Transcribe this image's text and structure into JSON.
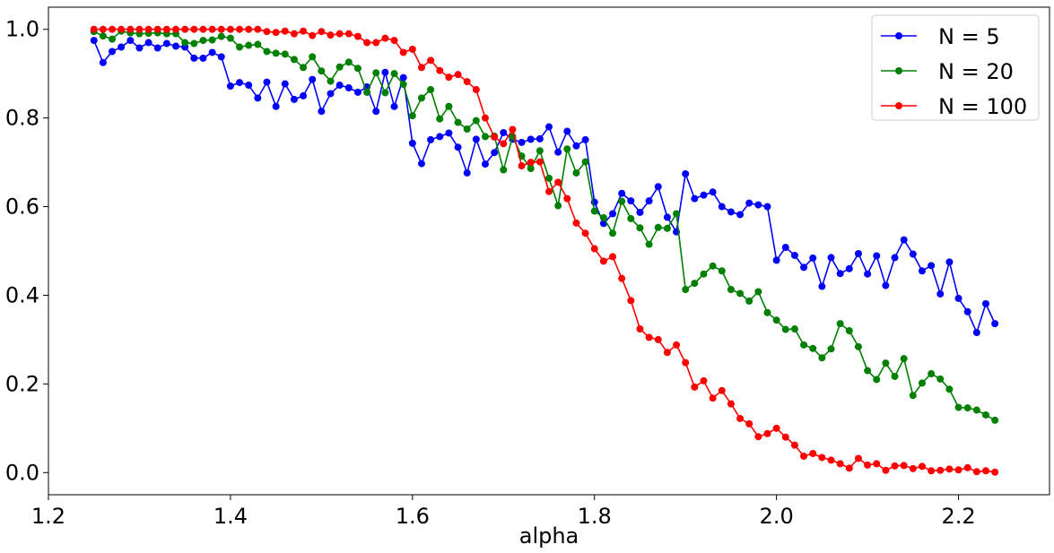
{
  "chart_data": {
    "type": "line",
    "title": "",
    "xlabel": "alpha",
    "ylabel": "",
    "xlim": [
      1.2,
      2.3
    ],
    "ylim": [
      -0.05,
      1.05
    ],
    "xticks": [
      "1.2",
      "1.4",
      "1.6",
      "1.8",
      "2.0",
      "2.2"
    ],
    "yticks": [
      "0.0",
      "0.2",
      "0.4",
      "0.6",
      "0.8",
      "1.0"
    ],
    "grid": false,
    "legend_position": "top-right",
    "x_start": 1.25,
    "x_step": 0.01,
    "series": [
      {
        "name": "N = 5",
        "color": "#0000ff",
        "values": [
          0.975,
          0.925,
          0.95,
          0.96,
          0.975,
          0.958,
          0.97,
          0.958,
          0.968,
          0.962,
          0.96,
          0.935,
          0.935,
          0.948,
          0.938,
          0.872,
          0.88,
          0.874,
          0.845,
          0.881,
          0.826,
          0.877,
          0.842,
          0.85,
          0.887,
          0.815,
          0.855,
          0.874,
          0.868,
          0.858,
          0.87,
          0.815,
          0.903,
          0.826,
          0.891,
          0.743,
          0.697,
          0.751,
          0.758,
          0.766,
          0.734,
          0.676,
          0.752,
          0.696,
          0.722,
          0.767,
          0.752,
          0.745,
          0.752,
          0.753,
          0.78,
          0.723,
          0.77,
          0.737,
          0.751,
          0.61,
          0.562,
          0.584,
          0.63,
          0.613,
          0.587,
          0.613,
          0.645,
          0.576,
          0.543,
          0.674,
          0.618,
          0.626,
          0.633,
          0.6,
          0.588,
          0.582,
          0.608,
          0.604,
          0.6,
          0.479,
          0.508,
          0.49,
          0.463,
          0.484,
          0.42,
          0.485,
          0.449,
          0.46,
          0.494,
          0.448,
          0.489,
          0.422,
          0.485,
          0.525,
          0.493,
          0.455,
          0.467,
          0.403,
          0.475,
          0.393,
          0.363,
          0.316,
          0.381,
          0.336
        ]
      },
      {
        "name": "N = 20",
        "color": "#008000",
        "values": [
          0.995,
          0.985,
          0.978,
          0.996,
          0.992,
          0.99,
          0.991,
          0.992,
          0.99,
          0.99,
          0.97,
          0.968,
          0.975,
          0.976,
          0.984,
          0.98,
          0.96,
          0.964,
          0.966,
          0.95,
          0.946,
          0.944,
          0.932,
          0.914,
          0.938,
          0.906,
          0.883,
          0.915,
          0.926,
          0.912,
          0.858,
          0.902,
          0.857,
          0.9,
          0.876,
          0.805,
          0.845,
          0.864,
          0.798,
          0.826,
          0.79,
          0.775,
          0.794,
          0.758,
          0.759,
          0.683,
          0.758,
          0.714,
          0.686,
          0.726,
          0.664,
          0.602,
          0.73,
          0.676,
          0.701,
          0.59,
          0.575,
          0.54,
          0.612,
          0.573,
          0.552,
          0.515,
          0.553,
          0.551,
          0.584,
          0.413,
          0.427,
          0.448,
          0.466,
          0.455,
          0.413,
          0.404,
          0.387,
          0.408,
          0.361,
          0.344,
          0.323,
          0.324,
          0.288,
          0.28,
          0.259,
          0.279,
          0.336,
          0.32,
          0.284,
          0.23,
          0.21,
          0.247,
          0.217,
          0.257,
          0.174,
          0.202,
          0.223,
          0.211,
          0.188,
          0.147,
          0.146,
          0.141,
          0.13,
          0.118
        ]
      },
      {
        "name": "N = 100",
        "color": "#ff0000",
        "values": [
          1.0,
          1.0,
          1.0,
          1.0,
          1.0,
          1.0,
          1.0,
          1.0,
          1.0,
          1.0,
          1.0,
          1.0,
          1.0,
          1.0,
          1.0,
          1.0,
          1.0,
          1.0,
          1.0,
          0.995,
          0.993,
          0.996,
          0.99,
          0.996,
          0.986,
          0.995,
          0.987,
          0.99,
          0.99,
          0.984,
          0.97,
          0.97,
          0.98,
          0.975,
          0.948,
          0.955,
          0.914,
          0.93,
          0.907,
          0.892,
          0.898,
          0.882,
          0.864,
          0.8,
          0.757,
          0.742,
          0.774,
          0.692,
          0.7,
          0.701,
          0.634,
          0.655,
          0.618,
          0.563,
          0.54,
          0.505,
          0.477,
          0.487,
          0.438,
          0.388,
          0.324,
          0.305,
          0.3,
          0.271,
          0.288,
          0.248,
          0.193,
          0.207,
          0.168,
          0.185,
          0.155,
          0.122,
          0.11,
          0.081,
          0.088,
          0.1,
          0.08,
          0.062,
          0.037,
          0.043,
          0.034,
          0.028,
          0.02,
          0.01,
          0.032,
          0.017,
          0.02,
          0.005,
          0.015,
          0.016,
          0.009,
          0.014,
          0.004,
          0.005,
          0.008,
          0.006,
          0.011,
          0.002,
          0.004,
          0.001
        ]
      }
    ]
  }
}
